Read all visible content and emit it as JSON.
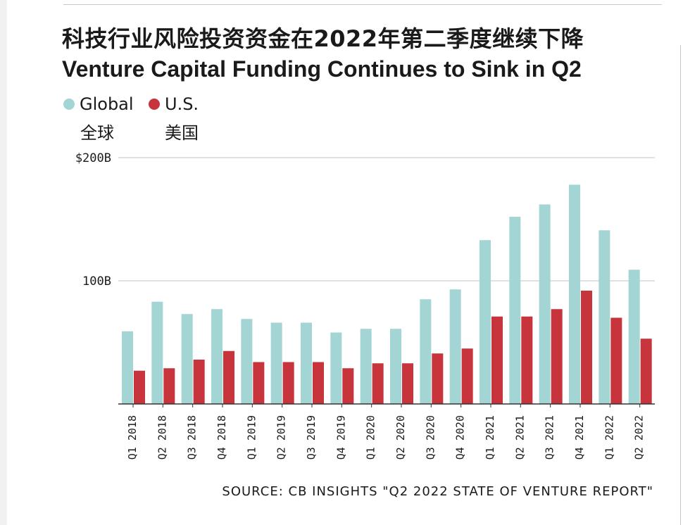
{
  "title_cn": "科技行业风险投资资金在2022年第二季度继续下降",
  "title_en": "Venture Capital Funding Continues to Sink in Q2",
  "legend": [
    {
      "label": "Global",
      "label_cn": "全球",
      "color": "#a2d5d3"
    },
    {
      "label": "U.S.",
      "label_cn": "美国",
      "color": "#c7343c"
    }
  ],
  "source": "SOURCE: CB INSIGHTS \"Q2 2022 STATE OF VENTURE REPORT\"",
  "chart_data": {
    "type": "bar",
    "categories": [
      "Q1 2018",
      "Q2 2018",
      "Q3 2018",
      "Q4 2018",
      "Q1 2019",
      "Q2 2019",
      "Q3 2019",
      "Q4 2019",
      "Q1 2020",
      "Q2 2020",
      "Q3 2020",
      "Q4 2020",
      "Q1 2021",
      "Q2 2021",
      "Q3 2021",
      "Q4 2021",
      "Q1 2022",
      "Q2 2022"
    ],
    "series": [
      {
        "name": "Global",
        "color": "#a2d5d3",
        "values": [
          59,
          83,
          73,
          77,
          69,
          66,
          66,
          58,
          61,
          61,
          85,
          93,
          133,
          152,
          162,
          178,
          141,
          109
        ]
      },
      {
        "name": "U.S.",
        "color": "#c7343c",
        "values": [
          27,
          29,
          36,
          43,
          34,
          34,
          34,
          29,
          33,
          33,
          41,
          45,
          71,
          71,
          77,
          92,
          70,
          53
        ]
      }
    ],
    "ytick_labels": [
      "$200B",
      "100B"
    ],
    "yticks": [
      200,
      100
    ],
    "ylim": [
      0,
      200
    ],
    "grid": true
  }
}
